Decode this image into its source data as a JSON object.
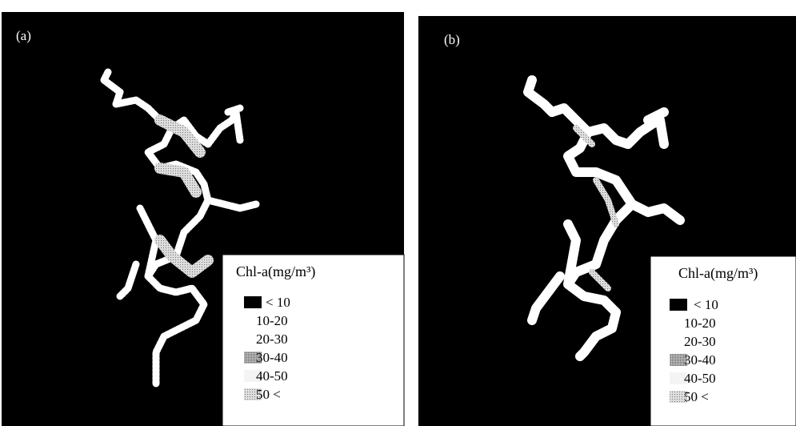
{
  "panels": [
    {
      "label": "(a)",
      "legend": {
        "title": "Chl-a(mg/m³)",
        "items": [
          "< 10",
          "10-20",
          "20-30",
          "30-40",
          "40-50",
          "50 <"
        ]
      }
    },
    {
      "label": "(b)",
      "legend": {
        "title": "Chl-a(mg/m³)",
        "items": [
          "< 10",
          "10-20",
          "20-30",
          "30-40",
          "40-50",
          "50 <"
        ]
      }
    }
  ]
}
